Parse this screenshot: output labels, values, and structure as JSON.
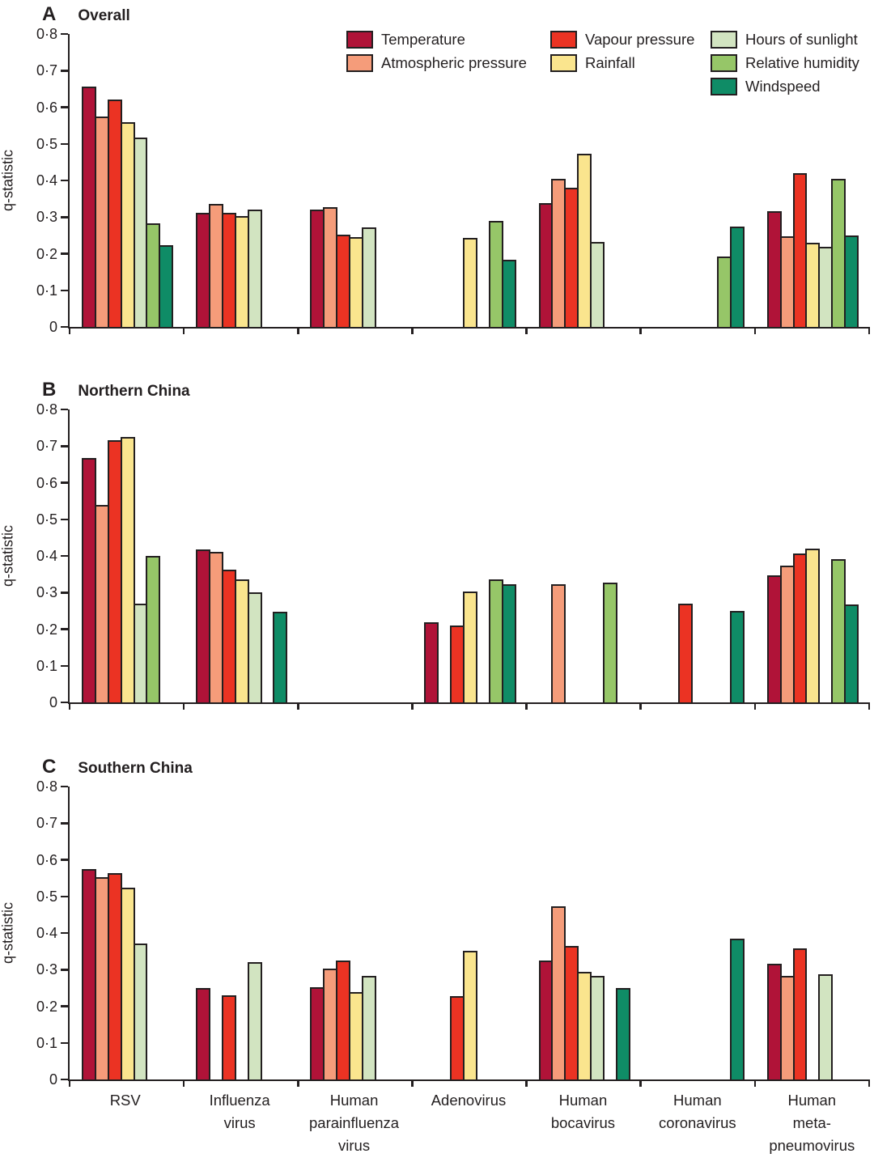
{
  "chart_data": [
    {
      "type": "bar",
      "panel_letter": "A",
      "title": "Overall",
      "ylabel": "q-statistic",
      "ylim": [
        0,
        0.8
      ],
      "yticks": [
        "0",
        "0·1",
        "0·2",
        "0·3",
        "0·4",
        "0·5",
        "0·6",
        "0·7",
        "0·8"
      ],
      "categories": [
        "RSV",
        "Influenza virus",
        "Human parainfluenza virus",
        "Adenovirus",
        "Human bocavirus",
        "Human coronavirus",
        "Human meta-pneumovirus"
      ],
      "series": [
        {
          "name": "Temperature",
          "color": "#b01338",
          "values": [
            0.656,
            0.312,
            0.32,
            null,
            0.339,
            null,
            0.315
          ]
        },
        {
          "name": "Atmospheric pressure",
          "color": "#f59c7a",
          "values": [
            0.574,
            0.335,
            0.328,
            null,
            0.405,
            null,
            0.247
          ]
        },
        {
          "name": "Vapour pressure",
          "color": "#eb3323",
          "values": [
            0.62,
            0.312,
            0.252,
            null,
            0.38,
            null,
            0.42
          ]
        },
        {
          "name": "Rainfall",
          "color": "#fae58e",
          "values": [
            0.56,
            0.303,
            0.246,
            0.243,
            0.472,
            null,
            0.229
          ]
        },
        {
          "name": "Hours of sunlight",
          "color": "#d2e4c1",
          "values": [
            0.517,
            0.321,
            0.272,
            null,
            0.232,
            null,
            0.218
          ]
        },
        {
          "name": "Relative humidity",
          "color": "#96c668",
          "values": [
            0.283,
            null,
            null,
            0.29,
            null,
            0.193,
            0.405
          ]
        },
        {
          "name": "Windspeed",
          "color": "#0f8c66",
          "values": [
            0.224,
            null,
            null,
            0.184,
            null,
            0.274,
            0.25
          ]
        }
      ],
      "legend": {
        "position": "top-right",
        "columns": [
          [
            "Temperature",
            "Atmospheric pressure"
          ],
          [
            "Vapour pressure",
            "Rainfall"
          ],
          [
            "Hours of sunlight",
            "Relative humidity",
            "Windspeed"
          ]
        ]
      }
    },
    {
      "type": "bar",
      "panel_letter": "B",
      "title": "Northern China",
      "ylabel": "q-statistic",
      "ylim": [
        0,
        0.8
      ],
      "yticks": [
        "0",
        "0·1",
        "0·2",
        "0·3",
        "0·4",
        "0·5",
        "0·6",
        "0·7",
        "0·8"
      ],
      "categories": [
        "RSV",
        "Influenza virus",
        "Human parainfluenza virus",
        "Adenovirus",
        "Human bocavirus",
        "Human coronavirus",
        "Human meta-pneumovirus"
      ],
      "series": [
        {
          "name": "Temperature",
          "color": "#b01338",
          "values": [
            0.667,
            0.418,
            null,
            0.218,
            null,
            null,
            0.346
          ]
        },
        {
          "name": "Atmospheric pressure",
          "color": "#f59c7a",
          "values": [
            0.54,
            0.41,
            null,
            null,
            0.322,
            null,
            0.374
          ]
        },
        {
          "name": "Vapour pressure",
          "color": "#eb3323",
          "values": [
            0.715,
            0.363,
            null,
            0.209,
            null,
            0.27,
            0.407
          ]
        },
        {
          "name": "Rainfall",
          "color": "#fae58e",
          "values": [
            0.724,
            0.335,
            null,
            0.302,
            null,
            null,
            0.42
          ]
        },
        {
          "name": "Hours of sunlight",
          "color": "#d2e4c1",
          "values": [
            0.27,
            0.3,
            null,
            null,
            null,
            null,
            null
          ]
        },
        {
          "name": "Relative humidity",
          "color": "#96c668",
          "values": [
            0.4,
            null,
            null,
            0.337,
            0.328,
            null,
            0.392
          ]
        },
        {
          "name": "Windspeed",
          "color": "#0f8c66",
          "values": [
            null,
            0.247,
            null,
            0.322,
            null,
            0.25,
            0.268
          ]
        }
      ]
    },
    {
      "type": "bar",
      "panel_letter": "C",
      "title": "Southern China",
      "ylabel": "q-statistic",
      "ylim": [
        0,
        0.8
      ],
      "yticks": [
        "0",
        "0·1",
        "0·2",
        "0·3",
        "0·4",
        "0·5",
        "0·6",
        "0·7",
        "0·8"
      ],
      "categories": [
        "RSV",
        "Influenza virus",
        "Human parainfluenza virus",
        "Adenovirus",
        "Human bocavirus",
        "Human coronavirus",
        "Human meta-pneumovirus"
      ],
      "series": [
        {
          "name": "Temperature",
          "color": "#b01338",
          "values": [
            0.574,
            0.25,
            0.252,
            null,
            0.326,
            null,
            0.316
          ]
        },
        {
          "name": "Atmospheric pressure",
          "color": "#f59c7a",
          "values": [
            0.552,
            null,
            0.302,
            null,
            0.472,
            null,
            0.282
          ]
        },
        {
          "name": "Vapour pressure",
          "color": "#eb3323",
          "values": [
            0.563,
            0.23,
            0.324,
            0.227,
            0.364,
            null,
            0.358
          ]
        },
        {
          "name": "Rainfall",
          "color": "#fae58e",
          "values": [
            0.523,
            null,
            0.238,
            0.352,
            0.293,
            null,
            null
          ]
        },
        {
          "name": "Hours of sunlight",
          "color": "#d2e4c1",
          "values": [
            0.372,
            0.32,
            0.284,
            null,
            0.284,
            null,
            0.288
          ]
        },
        {
          "name": "Relative humidity",
          "color": "#96c668",
          "values": [
            null,
            null,
            null,
            null,
            null,
            null,
            null
          ]
        },
        {
          "name": "Windspeed",
          "color": "#0f8c66",
          "values": [
            null,
            null,
            null,
            null,
            0.25,
            0.385,
            null
          ]
        }
      ]
    }
  ],
  "x_axis": {
    "label_lines": [
      [
        "RSV"
      ],
      [
        "Influenza",
        "virus"
      ],
      [
        "Human",
        "parainfluenza",
        "virus"
      ],
      [
        "Adenovirus"
      ],
      [
        "Human",
        "bocavirus"
      ],
      [
        "Human",
        "coronavirus"
      ],
      [
        "Human",
        "meta-",
        "pneumovirus"
      ]
    ]
  }
}
